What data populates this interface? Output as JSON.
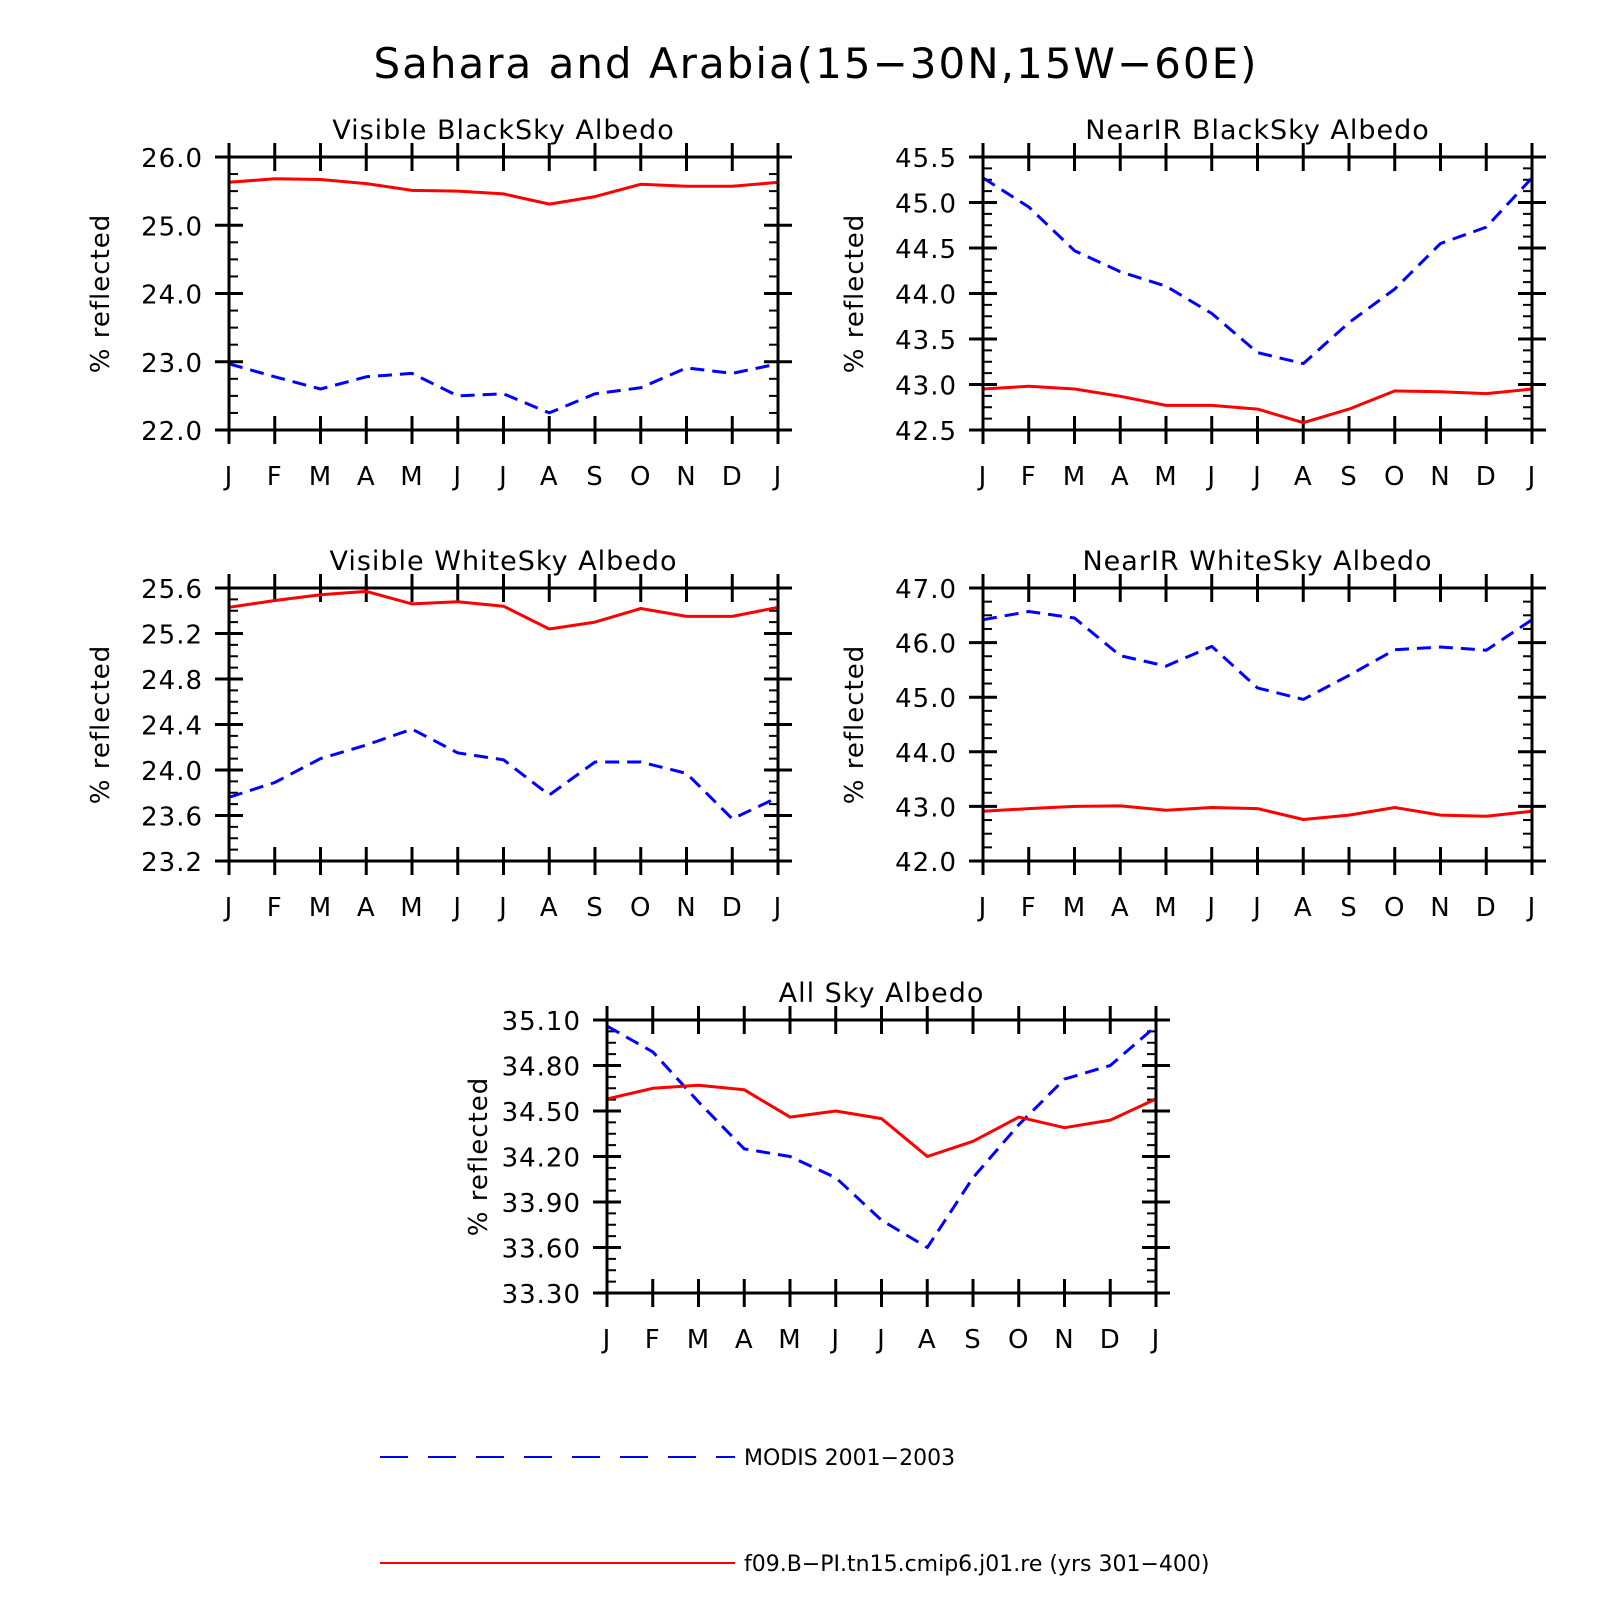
{
  "figure_title": "Sahara and Arabia(15−30N,15W−60E)",
  "legend": [
    {
      "label": "MODIS 2001−2003",
      "color": "#0000ff",
      "style": "dashed"
    },
    {
      "label": "f09.B−PI.tn15.cmip6.j01.re (yrs 301−400)",
      "color": "#ff0000",
      "style": "solid"
    }
  ],
  "chart_data": [
    {
      "type": "line",
      "title": "Visible BlackSky Albedo",
      "ylabel": "% reflected",
      "categories": [
        "J",
        "F",
        "M",
        "A",
        "M",
        "J",
        "J",
        "A",
        "S",
        "O",
        "N",
        "D",
        "J"
      ],
      "yticks": [
        "22.0",
        "23.0",
        "24.0",
        "25.0",
        "26.0"
      ],
      "ylim": [
        22.0,
        26.0
      ],
      "series": [
        {
          "name": "MODIS 2001−2003",
          "color": "#0000ff",
          "dashed": true,
          "values": [
            22.97,
            22.78,
            22.6,
            22.78,
            22.83,
            22.5,
            22.53,
            22.25,
            22.53,
            22.62,
            22.91,
            22.83,
            22.97
          ]
        },
        {
          "name": "f09.B−PI.tn15.cmip6.j01.re (yrs 301−400)",
          "color": "#ff0000",
          "dashed": false,
          "values": [
            25.63,
            25.68,
            25.67,
            25.61,
            25.51,
            25.5,
            25.46,
            25.31,
            25.42,
            25.6,
            25.57,
            25.57,
            25.63
          ]
        }
      ]
    },
    {
      "type": "line",
      "title": "NearIR BlackSky Albedo",
      "ylabel": "% reflected",
      "categories": [
        "J",
        "F",
        "M",
        "A",
        "M",
        "J",
        "J",
        "A",
        "S",
        "O",
        "N",
        "D",
        "J"
      ],
      "yticks": [
        "42.5",
        "43.0",
        "43.5",
        "44.0",
        "44.5",
        "45.0",
        "45.5"
      ],
      "ylim": [
        42.5,
        45.5
      ],
      "series": [
        {
          "name": "MODIS 2001−2003",
          "color": "#0000ff",
          "dashed": true,
          "values": [
            45.27,
            44.95,
            44.47,
            44.24,
            44.08,
            43.78,
            43.35,
            43.23,
            43.68,
            44.05,
            44.55,
            44.73,
            45.27
          ]
        },
        {
          "name": "f09.B−PI.tn15.cmip6.j01.re (yrs 301−400)",
          "color": "#ff0000",
          "dashed": false,
          "values": [
            42.95,
            42.98,
            42.95,
            42.87,
            42.77,
            42.77,
            42.73,
            42.58,
            42.73,
            42.93,
            42.92,
            42.9,
            42.95
          ]
        }
      ]
    },
    {
      "type": "line",
      "title": "Visible WhiteSky Albedo",
      "ylabel": "% reflected",
      "categories": [
        "J",
        "F",
        "M",
        "A",
        "M",
        "J",
        "J",
        "A",
        "S",
        "O",
        "N",
        "D",
        "J"
      ],
      "yticks": [
        "23.2",
        "23.6",
        "24.0",
        "24.4",
        "24.8",
        "25.2",
        "25.6"
      ],
      "ylim": [
        23.2,
        25.6
      ],
      "series": [
        {
          "name": "MODIS 2001−2003",
          "color": "#0000ff",
          "dashed": true,
          "values": [
            23.76,
            23.89,
            24.1,
            24.22,
            24.36,
            24.15,
            24.09,
            23.78,
            24.07,
            24.07,
            23.97,
            23.57,
            23.76
          ]
        },
        {
          "name": "f09.B−PI.tn15.cmip6.j01.re (yrs 301−400)",
          "color": "#ff0000",
          "dashed": false,
          "values": [
            25.43,
            25.49,
            25.54,
            25.57,
            25.46,
            25.48,
            25.44,
            25.24,
            25.3,
            25.42,
            25.35,
            25.35,
            25.43
          ]
        }
      ]
    },
    {
      "type": "line",
      "title": "NearIR WhiteSky Albedo",
      "ylabel": "% reflected",
      "categories": [
        "J",
        "F",
        "M",
        "A",
        "M",
        "J",
        "J",
        "A",
        "S",
        "O",
        "N",
        "D",
        "J"
      ],
      "yticks": [
        "42.0",
        "43.0",
        "44.0",
        "45.0",
        "46.0",
        "47.0"
      ],
      "ylim": [
        42.0,
        47.0
      ],
      "series": [
        {
          "name": "MODIS 2001−2003",
          "color": "#0000ff",
          "dashed": true,
          "values": [
            46.42,
            46.57,
            46.45,
            45.76,
            45.57,
            45.93,
            45.17,
            44.96,
            45.4,
            45.87,
            45.92,
            45.86,
            46.42
          ]
        },
        {
          "name": "f09.B−PI.tn15.cmip6.j01.re (yrs 301−400)",
          "color": "#ff0000",
          "dashed": false,
          "values": [
            42.91,
            42.96,
            43.0,
            43.01,
            42.93,
            42.98,
            42.96,
            42.76,
            42.84,
            42.98,
            42.84,
            42.82,
            42.91
          ]
        }
      ]
    },
    {
      "type": "line",
      "title": "All Sky Albedo",
      "ylabel": "% reflected",
      "categories": [
        "J",
        "F",
        "M",
        "A",
        "M",
        "J",
        "J",
        "A",
        "S",
        "O",
        "N",
        "D",
        "J"
      ],
      "yticks": [
        "33.30",
        "33.60",
        "33.90",
        "34.20",
        "34.50",
        "34.80",
        "35.10"
      ],
      "ylim": [
        33.3,
        35.1
      ],
      "series": [
        {
          "name": "MODIS 2001−2003",
          "color": "#0000ff",
          "dashed": true,
          "values": [
            35.06,
            34.89,
            34.56,
            34.25,
            34.2,
            34.06,
            33.78,
            33.6,
            34.06,
            34.41,
            34.71,
            34.8,
            35.06
          ]
        },
        {
          "name": "f09.B−PI.tn15.cmip6.j01.re (yrs 301−400)",
          "color": "#ff0000",
          "dashed": false,
          "values": [
            34.58,
            34.65,
            34.67,
            34.64,
            34.46,
            34.5,
            34.45,
            34.2,
            34.3,
            34.46,
            34.39,
            34.44,
            34.58
          ]
        }
      ]
    }
  ]
}
